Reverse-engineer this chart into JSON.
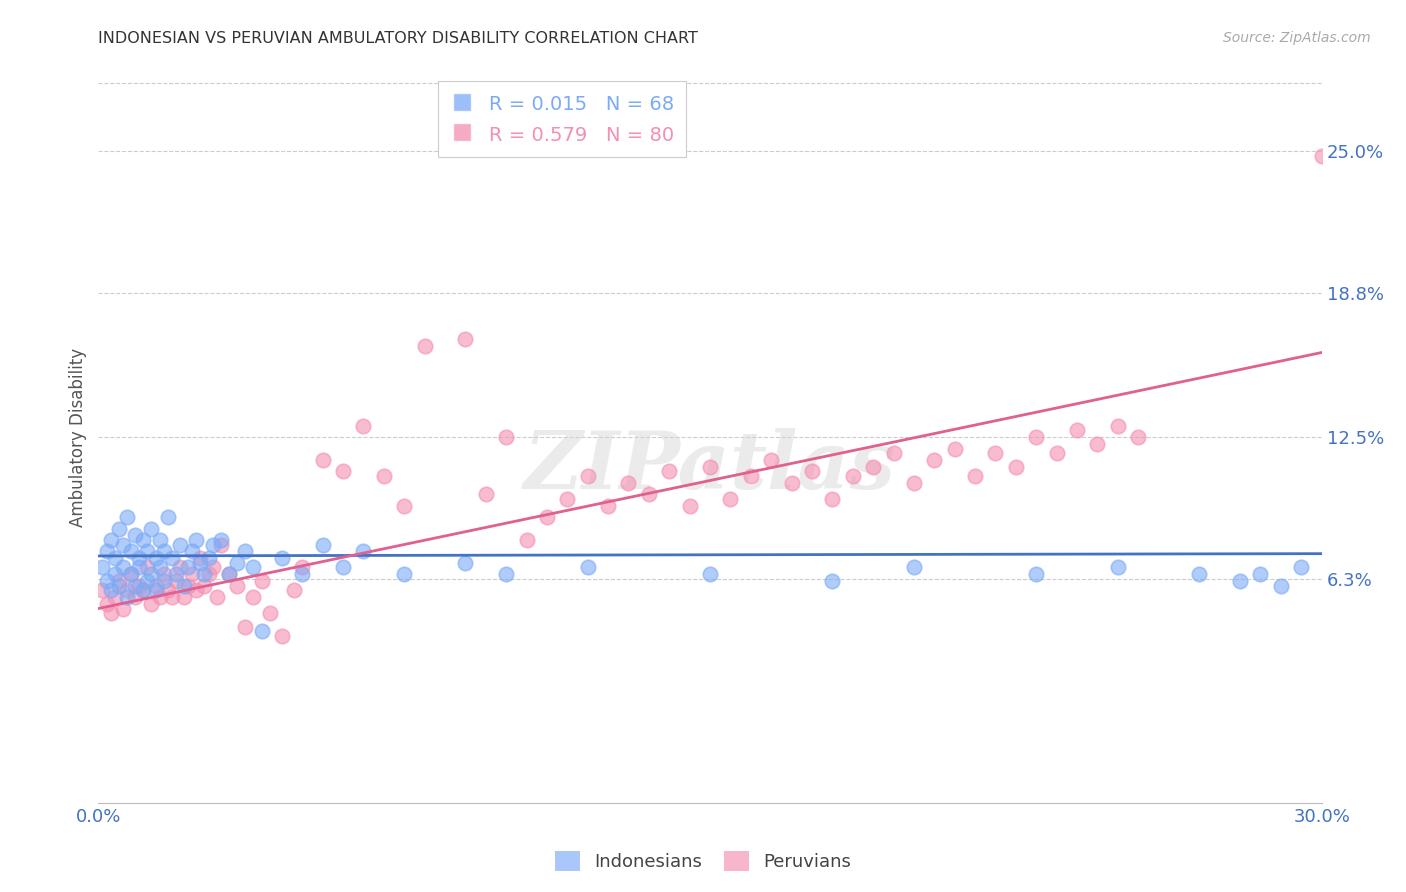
{
  "title": "INDONESIAN VS PERUVIAN AMBULATORY DISABILITY CORRELATION CHART",
  "source": "Source: ZipAtlas.com",
  "ylabel": "Ambulatory Disability",
  "xlim": [
    0.0,
    0.3
  ],
  "ylim": [
    -0.035,
    0.285
  ],
  "ytick_positions": [
    0.063,
    0.125,
    0.188,
    0.25
  ],
  "ytick_labels": [
    "6.3%",
    "12.5%",
    "18.8%",
    "25.0%"
  ],
  "xtick_positions": [
    0.0,
    0.075,
    0.15,
    0.225,
    0.3
  ],
  "xtick_labels": [
    "0.0%",
    "",
    "",
    "",
    "30.0%"
  ],
  "indonesian_R": "0.015",
  "indonesian_N": "68",
  "peruvian_R": "0.579",
  "peruvian_N": "80",
  "blue_color": "#7BAAF7",
  "pink_color": "#F48FB1",
  "blue_line_color": "#4472C4",
  "pink_line_color": "#E06090",
  "watermark": "ZIPatlas",
  "indo_line_y0": 0.073,
  "indo_line_y1": 0.074,
  "peru_line_y0": 0.05,
  "peru_line_y1": 0.162,
  "indonesian_x": [
    0.001,
    0.002,
    0.002,
    0.003,
    0.003,
    0.004,
    0.004,
    0.005,
    0.005,
    0.006,
    0.006,
    0.007,
    0.007,
    0.008,
    0.008,
    0.009,
    0.009,
    0.01,
    0.01,
    0.011,
    0.011,
    0.012,
    0.012,
    0.013,
    0.013,
    0.014,
    0.014,
    0.015,
    0.015,
    0.016,
    0.016,
    0.017,
    0.018,
    0.019,
    0.02,
    0.021,
    0.022,
    0.023,
    0.024,
    0.025,
    0.026,
    0.027,
    0.028,
    0.03,
    0.032,
    0.034,
    0.036,
    0.038,
    0.04,
    0.045,
    0.05,
    0.055,
    0.06,
    0.065,
    0.075,
    0.09,
    0.1,
    0.12,
    0.15,
    0.18,
    0.2,
    0.23,
    0.25,
    0.27,
    0.28,
    0.285,
    0.29,
    0.295
  ],
  "indonesian_y": [
    0.068,
    0.075,
    0.062,
    0.08,
    0.058,
    0.072,
    0.065,
    0.085,
    0.06,
    0.078,
    0.068,
    0.09,
    0.055,
    0.075,
    0.065,
    0.082,
    0.06,
    0.072,
    0.068,
    0.08,
    0.058,
    0.075,
    0.062,
    0.085,
    0.065,
    0.072,
    0.058,
    0.08,
    0.068,
    0.075,
    0.062,
    0.09,
    0.072,
    0.065,
    0.078,
    0.06,
    0.068,
    0.075,
    0.08,
    0.07,
    0.065,
    0.072,
    0.078,
    0.08,
    0.065,
    0.07,
    0.075,
    0.068,
    0.04,
    0.072,
    0.065,
    0.078,
    0.068,
    0.075,
    0.065,
    0.07,
    0.065,
    0.068,
    0.065,
    0.062,
    0.068,
    0.065,
    0.068,
    0.065,
    0.062,
    0.065,
    0.06,
    0.068
  ],
  "peruvian_x": [
    0.001,
    0.002,
    0.003,
    0.004,
    0.005,
    0.006,
    0.007,
    0.008,
    0.009,
    0.01,
    0.011,
    0.012,
    0.013,
    0.014,
    0.015,
    0.016,
    0.017,
    0.018,
    0.019,
    0.02,
    0.021,
    0.022,
    0.023,
    0.024,
    0.025,
    0.026,
    0.027,
    0.028,
    0.029,
    0.03,
    0.032,
    0.034,
    0.036,
    0.038,
    0.04,
    0.042,
    0.045,
    0.048,
    0.05,
    0.055,
    0.06,
    0.065,
    0.07,
    0.075,
    0.08,
    0.09,
    0.095,
    0.1,
    0.105,
    0.11,
    0.115,
    0.12,
    0.125,
    0.13,
    0.135,
    0.14,
    0.145,
    0.15,
    0.155,
    0.16,
    0.165,
    0.17,
    0.175,
    0.18,
    0.185,
    0.19,
    0.195,
    0.2,
    0.205,
    0.21,
    0.215,
    0.22,
    0.225,
    0.23,
    0.235,
    0.24,
    0.245,
    0.25,
    0.255,
    0.3
  ],
  "peruvian_y": [
    0.058,
    0.052,
    0.048,
    0.055,
    0.062,
    0.05,
    0.058,
    0.065,
    0.055,
    0.06,
    0.058,
    0.068,
    0.052,
    0.06,
    0.055,
    0.065,
    0.058,
    0.055,
    0.062,
    0.068,
    0.055,
    0.06,
    0.065,
    0.058,
    0.072,
    0.06,
    0.065,
    0.068,
    0.055,
    0.078,
    0.065,
    0.06,
    0.042,
    0.055,
    0.062,
    0.048,
    0.038,
    0.058,
    0.068,
    0.115,
    0.11,
    0.13,
    0.108,
    0.095,
    0.165,
    0.168,
    0.1,
    0.125,
    0.08,
    0.09,
    0.098,
    0.108,
    0.095,
    0.105,
    0.1,
    0.11,
    0.095,
    0.112,
    0.098,
    0.108,
    0.115,
    0.105,
    0.11,
    0.098,
    0.108,
    0.112,
    0.118,
    0.105,
    0.115,
    0.12,
    0.108,
    0.118,
    0.112,
    0.125,
    0.118,
    0.128,
    0.122,
    0.13,
    0.125,
    0.248
  ]
}
